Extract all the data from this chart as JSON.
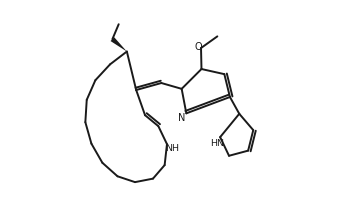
{
  "background_color": "#ffffff",
  "line_color": "#1a1a1a",
  "line_width": 1.4,
  "figsize": [
    3.47,
    2.22
  ],
  "dpi": 100,
  "xlim": [
    0.02,
    0.98
  ],
  "ylim": [
    0.03,
    0.97
  ],
  "aspect": "equal"
}
